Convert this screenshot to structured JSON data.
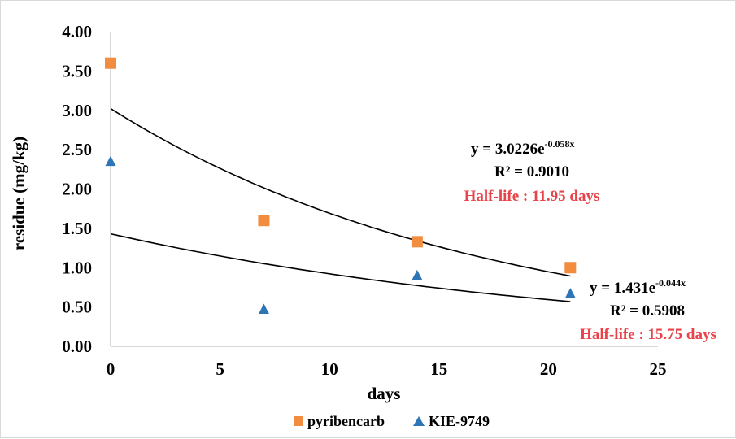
{
  "chart_data": {
    "type": "scatter",
    "xlabel": "days",
    "ylabel": "residue (mg/kg)",
    "xlim": [
      0,
      25
    ],
    "ylim": [
      0,
      4
    ],
    "x_ticks": [
      "0",
      "5",
      "10",
      "15",
      "20",
      "25"
    ],
    "y_ticks": [
      "0.00",
      "0.50",
      "1.00",
      "1.50",
      "2.00",
      "2.50",
      "3.00",
      "3.50",
      "4.00"
    ],
    "grid": false,
    "legend_position": "bottom",
    "series": [
      {
        "name": "pyribencarb",
        "marker": "square",
        "color": "#f28c3f",
        "x": [
          0,
          7,
          14,
          21
        ],
        "y": [
          3.6,
          1.6,
          1.33,
          1.0
        ],
        "trendline": {
          "type": "exponential",
          "a": 3.0226,
          "b": -0.058,
          "equation_main": "y = 3.0226e",
          "equation_exp": "-0.058x",
          "r2": "R² = 0.9010",
          "half_life": "Half-life : 11.95 days"
        }
      },
      {
        "name": "KIE-9749",
        "marker": "triangle",
        "color": "#2e75b6",
        "x": [
          0,
          7,
          14,
          21
        ],
        "y": [
          2.35,
          0.47,
          0.9,
          0.67
        ],
        "trendline": {
          "type": "exponential",
          "a": 1.431,
          "b": -0.044,
          "equation_main": "y = 1.431e",
          "equation_exp": "-0.044x",
          "r2": "R² = 0.5908",
          "half_life": "Half-life : 15.75 days"
        }
      }
    ]
  }
}
